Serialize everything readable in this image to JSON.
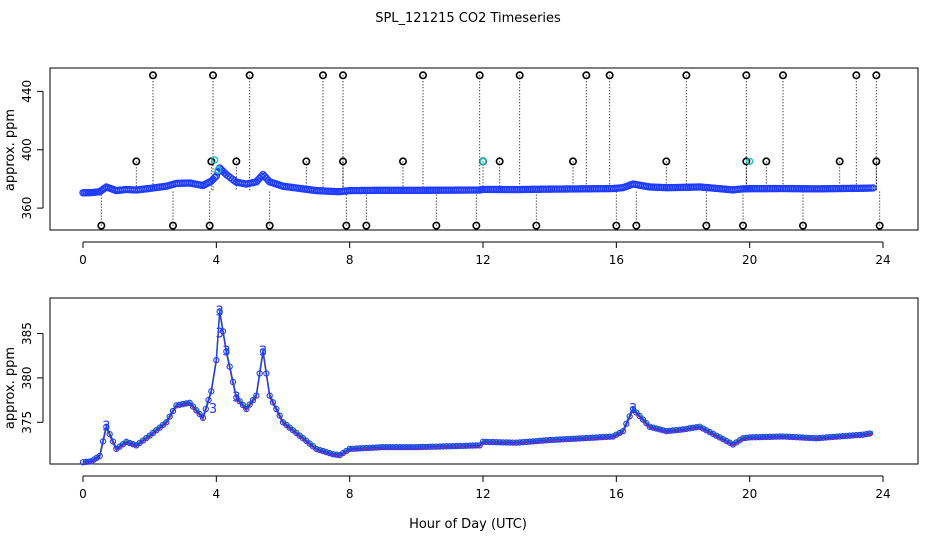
{
  "title": "SPL_121215  CO2 Timeseries",
  "xlabel": "Hour of Day (UTC)",
  "chart_data": [
    {
      "type": "scatter",
      "ylabel": "approx. ppm",
      "xlim": [
        0,
        24
      ],
      "ylim": [
        345,
        456
      ],
      "xticks": [
        "0",
        "4",
        "8",
        "12",
        "16",
        "20",
        "24"
      ],
      "yticks": [
        "360",
        "400",
        "440"
      ],
      "series": [
        {
          "values": [
            [
              0,
              370.5
            ],
            [
              0.25,
              370.6
            ],
            [
              0.5,
              371.2
            ],
            [
              0.7,
              374.5
            ],
            [
              1.0,
              372.0
            ],
            [
              1.3,
              372.8
            ],
            [
              1.6,
              372.4
            ],
            [
              2.0,
              373.5
            ],
            [
              2.5,
              375.0
            ],
            [
              2.8,
              376.9
            ],
            [
              3.2,
              377.2
            ],
            [
              3.6,
              375.5
            ],
            [
              3.85,
              378.5
            ],
            [
              4.0,
              382.0
            ],
            [
              4.1,
              387.5
            ],
            [
              4.3,
              383.0
            ],
            [
              4.6,
              377.8
            ],
            [
              4.9,
              376.5
            ],
            [
              5.2,
              378.0
            ],
            [
              5.4,
              383.0
            ],
            [
              5.6,
              378.0
            ],
            [
              6.0,
              375.0
            ],
            [
              6.5,
              373.5
            ],
            [
              7.0,
              372.0
            ],
            [
              7.5,
              371.4
            ],
            [
              7.7,
              371.3
            ],
            [
              8.0,
              372.0
            ],
            [
              9.0,
              372.2
            ],
            [
              10.0,
              372.2
            ],
            [
              11.0,
              372.3
            ],
            [
              11.9,
              372.4
            ],
            [
              12.0,
              372.8
            ],
            [
              13.0,
              372.7
            ],
            [
              14.0,
              373.0
            ],
            [
              15.0,
              373.2
            ],
            [
              15.9,
              373.4
            ],
            [
              16.2,
              374.0
            ],
            [
              16.5,
              376.5
            ],
            [
              17.0,
              374.5
            ],
            [
              17.5,
              374.0
            ],
            [
              18.0,
              374.2
            ],
            [
              18.5,
              374.5
            ],
            [
              19.0,
              373.5
            ],
            [
              19.5,
              372.5
            ],
            [
              19.8,
              373.2
            ],
            [
              20.0,
              373.3
            ],
            [
              21.0,
              373.4
            ],
            [
              22.0,
              373.2
            ],
            [
              23.0,
              373.5
            ],
            [
              23.4,
              373.6
            ],
            [
              23.7,
              373.8
            ]
          ]
        }
      ],
      "outliers_high": [
        2.1,
        3.9,
        5.0,
        7.2,
        7.8,
        10.2,
        11.9,
        13.1,
        15.1,
        15.8,
        18.1,
        19.9,
        21.0,
        23.2,
        23.8
      ],
      "outliers_mid": [
        1.6,
        3.85,
        4.6,
        6.7,
        7.8,
        9.6,
        12.0,
        12.5,
        14.7,
        17.5,
        19.9,
        20.5,
        22.7,
        23.8
      ],
      "outliers_low": [
        0.55,
        2.7,
        3.8,
        5.6,
        7.9,
        8.5,
        10.6,
        11.8,
        13.6,
        16.0,
        16.6,
        18.7,
        19.8,
        21.6,
        23.9
      ],
      "outlier_values": {
        "high": 451,
        "mid": 392,
        "low": 348
      }
    },
    {
      "type": "line",
      "ylabel": "approx. ppm",
      "xlim": [
        0,
        24
      ],
      "ylim": [
        370.3,
        389
      ],
      "xticks": [
        "0",
        "4",
        "8",
        "12",
        "16",
        "20",
        "24"
      ],
      "yticks": [
        "375",
        "380",
        "385"
      ],
      "series": [
        {
          "values": [
            [
              0,
              370.5
            ],
            [
              0.25,
              370.6
            ],
            [
              0.5,
              371.2
            ],
            [
              0.7,
              374.5
            ],
            [
              1.0,
              372.0
            ],
            [
              1.3,
              372.8
            ],
            [
              1.6,
              372.4
            ],
            [
              2.0,
              373.5
            ],
            [
              2.5,
              375.0
            ],
            [
              2.8,
              376.9
            ],
            [
              3.2,
              377.2
            ],
            [
              3.6,
              375.5
            ],
            [
              3.85,
              378.5
            ],
            [
              4.0,
              382.0
            ],
            [
              4.1,
              387.5
            ],
            [
              4.3,
              383.0
            ],
            [
              4.6,
              377.8
            ],
            [
              4.9,
              376.5
            ],
            [
              5.2,
              378.0
            ],
            [
              5.4,
              383.0
            ],
            [
              5.6,
              378.0
            ],
            [
              6.0,
              375.0
            ],
            [
              6.5,
              373.5
            ],
            [
              7.0,
              372.0
            ],
            [
              7.5,
              371.4
            ],
            [
              7.7,
              371.3
            ],
            [
              8.0,
              372.0
            ],
            [
              9.0,
              372.2
            ],
            [
              10.0,
              372.2
            ],
            [
              11.0,
              372.3
            ],
            [
              11.9,
              372.4
            ],
            [
              12.0,
              372.8
            ],
            [
              13.0,
              372.7
            ],
            [
              14.0,
              373.0
            ],
            [
              15.0,
              373.2
            ],
            [
              15.9,
              373.4
            ],
            [
              16.2,
              374.0
            ],
            [
              16.5,
              376.5
            ],
            [
              17.0,
              374.5
            ],
            [
              17.5,
              374.0
            ],
            [
              18.0,
              374.2
            ],
            [
              18.5,
              374.5
            ],
            [
              19.0,
              373.5
            ],
            [
              19.5,
              372.5
            ],
            [
              19.8,
              373.2
            ],
            [
              20.0,
              373.3
            ],
            [
              21.0,
              373.4
            ],
            [
              22.0,
              373.2
            ],
            [
              23.0,
              373.5
            ],
            [
              23.4,
              373.6
            ],
            [
              23.7,
              373.8
            ]
          ]
        }
      ],
      "point_labels": [
        {
          "x": 4.1,
          "y": 387.5,
          "text": "3"
        },
        {
          "x": 4.1,
          "y": 385.0,
          "text": "3"
        },
        {
          "x": 4.3,
          "y": 383.0,
          "text": "3"
        },
        {
          "x": 3.9,
          "y": 376.5,
          "text": "3"
        },
        {
          "x": 4.6,
          "y": 377.8,
          "text": "3"
        },
        {
          "x": 5.4,
          "y": 383.0,
          "text": "3"
        },
        {
          "x": 0.7,
          "y": 374.5,
          "text": "3"
        },
        {
          "x": 16.5,
          "y": 376.5,
          "text": "3"
        }
      ]
    }
  ]
}
